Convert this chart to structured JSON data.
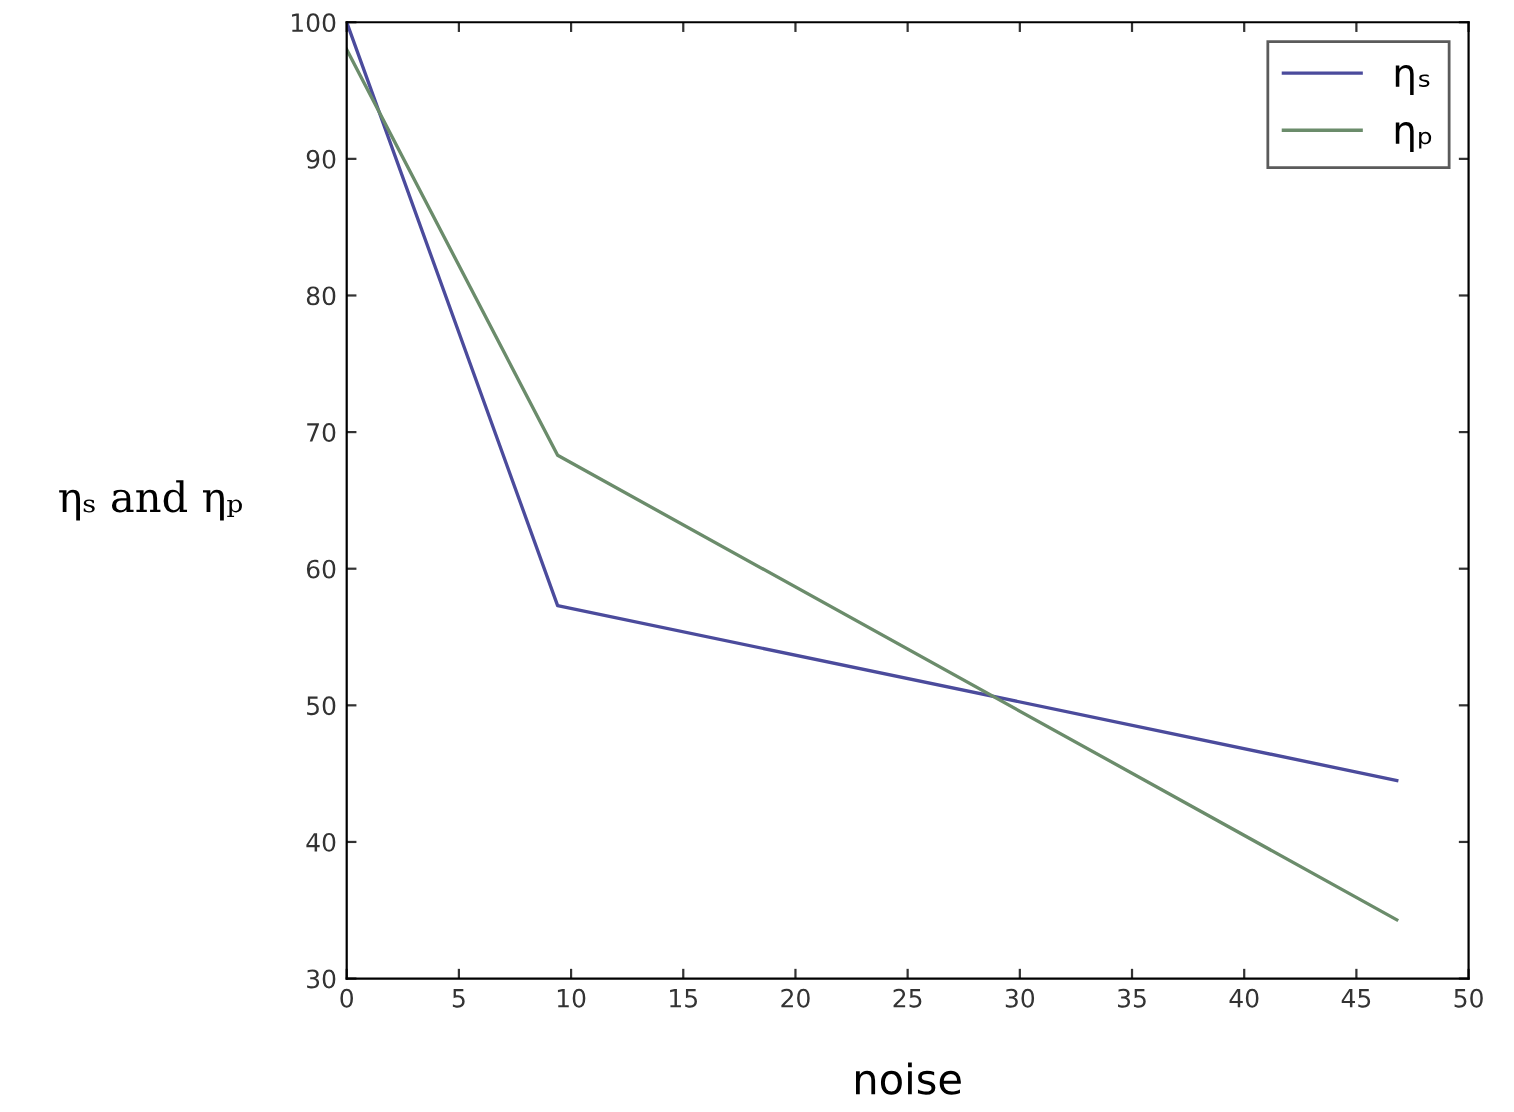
{
  "chart_data": {
    "type": "line",
    "xlabel": "noise",
    "ylabel": "ηₛ and ηₚ",
    "x": [
      0,
      9.4,
      46.8
    ],
    "series": [
      {
        "name": "ηₛ",
        "color": "#4b4b9c",
        "values": [
          100,
          57.3,
          44.5
        ]
      },
      {
        "name": "ηₚ",
        "color": "#6b8c6b",
        "values": [
          98,
          68.3,
          34.3
        ]
      }
    ],
    "xlim": [
      0,
      50
    ],
    "xticks": [
      0,
      5,
      10,
      15,
      20,
      25,
      30,
      35,
      40,
      45,
      50
    ],
    "ylim": [
      30,
      100
    ],
    "yticks": [
      30,
      40,
      50,
      60,
      70,
      80,
      90,
      100
    ],
    "grid": false,
    "legend": "top right",
    "marker": "none",
    "line_style": "solid"
  }
}
